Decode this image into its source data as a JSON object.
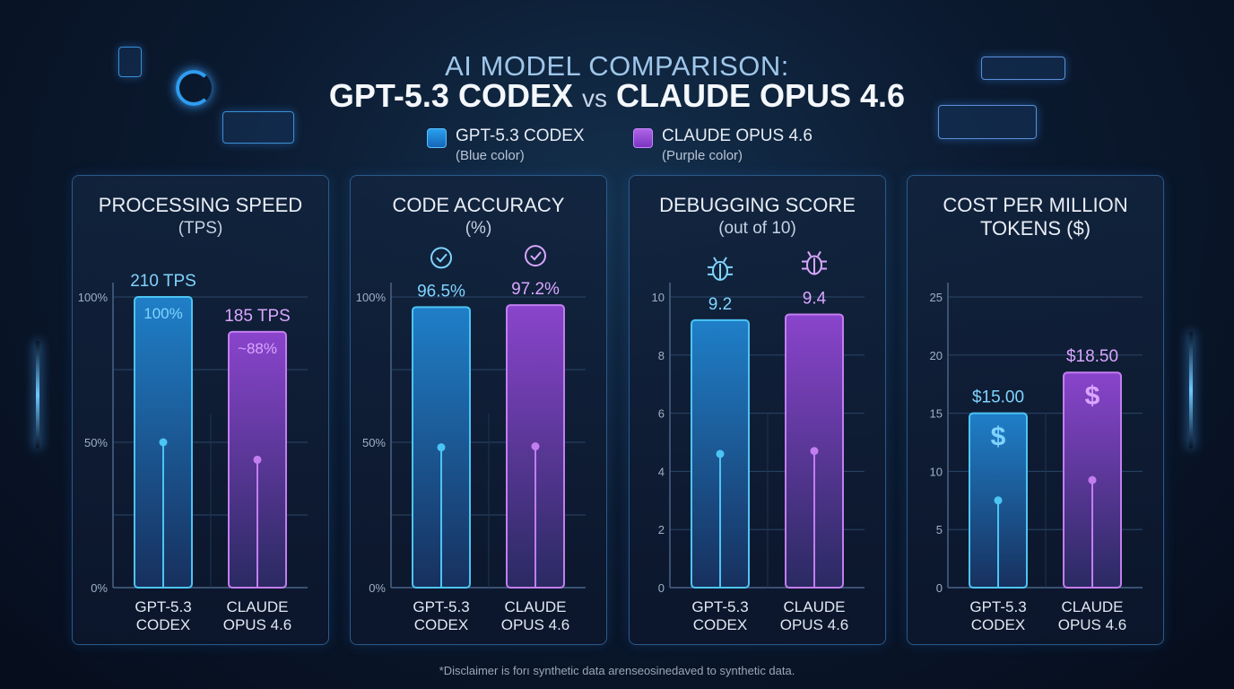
{
  "header": {
    "title_line1": "AI MODEL COMPARISON:",
    "title_model_a": "GPT-5.3 CODEX",
    "title_vs": "vs",
    "title_model_b": "CLAUDE OPUS 4.6"
  },
  "legend": [
    {
      "name": "GPT-5.3 CODEX",
      "note": "(Blue color)",
      "color": "#1e88d8"
    },
    {
      "name": "CLAUDE OPUS 4.6",
      "note": "(Purple color)",
      "color": "#9a4fd6"
    }
  ],
  "footer": "*Disclaimer is forı synthetic data arenseosinedaved to synthetic data.",
  "chart_data": [
    {
      "type": "bar",
      "title": "PROCESSING SPEED",
      "subtitle": "(TPS)",
      "categories": [
        "GPT-5.3\nCODEX",
        "CLAUDE\nOPUS 4.6"
      ],
      "values": [
        100,
        88
      ],
      "value_labels": [
        "210 TPS",
        "185 TPS"
      ],
      "inner_labels": [
        "100%",
        "~88%"
      ],
      "yticks": [
        "0%",
        "50%",
        "100%"
      ],
      "ytick_values": [
        0,
        50,
        100
      ],
      "ylim": [
        0,
        100
      ],
      "grid_step": 25,
      "icon": "none"
    },
    {
      "type": "bar",
      "title": "CODE ACCURACY",
      "subtitle": "(%)",
      "categories": [
        "GPT-5.3\nCODEX",
        "CLAUDE\nOPUS 4.6"
      ],
      "values": [
        96.5,
        97.2
      ],
      "value_labels": [
        "96.5%",
        "97.2%"
      ],
      "inner_labels": [
        "",
        ""
      ],
      "yticks": [
        "0%",
        "50%",
        "100%"
      ],
      "ytick_values": [
        0,
        50,
        100
      ],
      "ylim": [
        0,
        100
      ],
      "grid_step": 25,
      "icon": "check-circle-icon"
    },
    {
      "type": "bar",
      "title": "DEBUGGING SCORE",
      "subtitle": "(out of 10)",
      "categories": [
        "GPT-5.3\nCODEX",
        "CLAUDE\nOPUS 4.6"
      ],
      "values": [
        9.2,
        9.4
      ],
      "value_labels": [
        "9.2",
        "9.4"
      ],
      "inner_labels": [
        "",
        ""
      ],
      "yticks": [
        "0",
        "2",
        "4",
        "6",
        "8",
        "10"
      ],
      "ytick_values": [
        0,
        2,
        4,
        6,
        8,
        10
      ],
      "ylim": [
        0,
        10
      ],
      "grid_step": 2,
      "icon": "bug-icon"
    },
    {
      "type": "bar",
      "title": "COST PER MILLION",
      "subtitle": "TOKENS ($)",
      "categories": [
        "GPT-5.3\nCODEX",
        "CLAUDE\nOPUS 4.6"
      ],
      "values": [
        15.0,
        18.5
      ],
      "value_labels": [
        "$15.00",
        "$18.50"
      ],
      "inner_labels": [
        "$",
        "$"
      ],
      "yticks": [
        "0",
        "5",
        "10",
        "15",
        "20",
        "25"
      ],
      "ytick_values": [
        0,
        5,
        10,
        15,
        20,
        25
      ],
      "ylim": [
        0,
        25
      ],
      "grid_step": 5,
      "icon": "dollar-icon"
    }
  ]
}
